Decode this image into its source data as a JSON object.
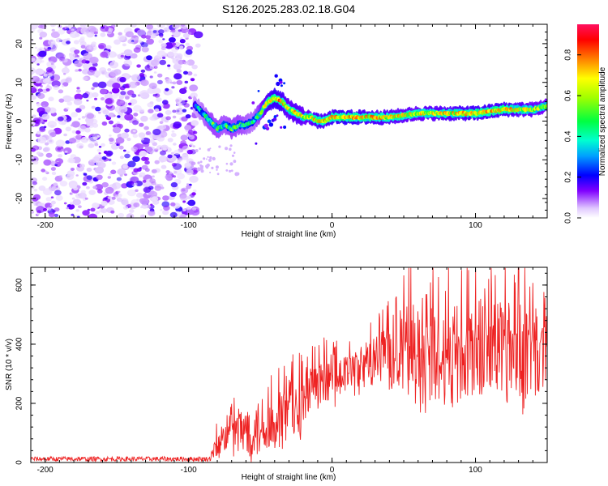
{
  "title": "S126.2025.283.02.18.G04",
  "colors": {
    "snr_line": "#ee2222",
    "axis": "#000000"
  },
  "chart_data": [
    {
      "type": "heatmap",
      "name": "spectrogram",
      "xlabel": "Height of straight line (km)",
      "ylabel": "Frequency (Hz)",
      "xlim": [
        -210,
        150
      ],
      "ylim": [
        -25,
        25
      ],
      "x_ticks": [
        "-200",
        "-100",
        "0",
        "100"
      ],
      "y_ticks": [
        "-20",
        "-10",
        "0",
        "10",
        "20"
      ],
      "colorbar": {
        "label": "Normalized spectral amplitude",
        "range": [
          0,
          0.95
        ],
        "ticks": [
          "0.0",
          "0.2",
          "0.4",
          "0.6",
          "0.8"
        ]
      },
      "noise_region_x": [
        -210,
        -95
      ],
      "signal_track": {
        "x": [
          -95,
          -90,
          -85,
          -80,
          -75,
          -70,
          -65,
          -60,
          -55,
          -50,
          -45,
          -40,
          -35,
          -30,
          -25,
          -20,
          -15,
          -10,
          -5,
          0,
          10,
          20,
          40,
          60,
          80,
          100,
          120,
          140,
          150
        ],
        "freq": [
          4,
          2,
          0,
          -2,
          -1,
          -2,
          -1,
          -1,
          0,
          2,
          5,
          6,
          5,
          3,
          2,
          1,
          1,
          0,
          0,
          1,
          1,
          1,
          1,
          2,
          2,
          2,
          3,
          3,
          4
        ],
        "amplitude": [
          0.3,
          0.4,
          0.5,
          0.5,
          0.45,
          0.5,
          0.5,
          0.45,
          0.4,
          0.55,
          0.75,
          0.85,
          0.8,
          0.7,
          0.75,
          0.7,
          0.7,
          0.8,
          0.75,
          0.8,
          0.85,
          0.8,
          0.75,
          0.7,
          0.75,
          0.8,
          0.8,
          0.7,
          0.65
        ]
      }
    },
    {
      "type": "line",
      "name": "snr",
      "xlabel": "Height of straight line (km)",
      "ylabel": "SNR (10 * v/v)",
      "xlim": [
        -210,
        150
      ],
      "ylim": [
        0,
        660
      ],
      "x_ticks": [
        "-200",
        "-100",
        "0",
        "100"
      ],
      "y_ticks": [
        "0",
        "200",
        "400",
        "600"
      ],
      "envelope": {
        "x": [
          -210,
          -85,
          -80,
          -70,
          -60,
          -50,
          -40,
          -30,
          -20,
          -10,
          0,
          10,
          20,
          30,
          40,
          50,
          60,
          70,
          80,
          90,
          100,
          110,
          120,
          130,
          140,
          150
        ],
        "mean": [
          12,
          12,
          60,
          100,
          110,
          120,
          140,
          170,
          190,
          250,
          280,
          300,
          320,
          350,
          370,
          380,
          370,
          360,
          360,
          370,
          380,
          390,
          400,
          380,
          370,
          360
        ],
        "spread": [
          8,
          8,
          60,
          90,
          100,
          110,
          110,
          120,
          120,
          110,
          90,
          80,
          80,
          100,
          130,
          180,
          200,
          200,
          200,
          200,
          200,
          200,
          210,
          200,
          200,
          190
        ]
      }
    }
  ]
}
